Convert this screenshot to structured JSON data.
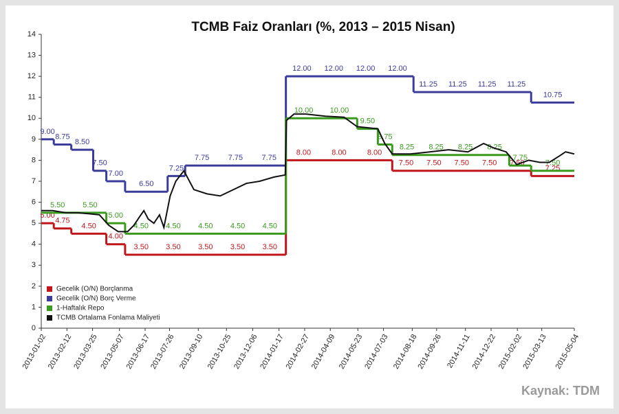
{
  "chart_data": {
    "type": "line",
    "title": "TCMB Faiz Oranları (%, 2013 – 2015 Nisan)",
    "source": "Kaynak: TDM",
    "xlim": [
      "2013-01-02",
      "2015-05-04"
    ],
    "xticks": [
      "2013-01-02",
      "2013-02-12",
      "2013-03-25",
      "2013-05-07",
      "2013-06-17",
      "2013-07-26",
      "2013-09-10",
      "2013-10-25",
      "2013-12-06",
      "2014-01-17",
      "2014-02-27",
      "2014-04-09",
      "2014-05-23",
      "2014-07-03",
      "2014-08-18",
      "2014-09-26",
      "2014-11-11",
      "2014-12-22",
      "2015-02-02",
      "2015-03-13",
      "2015-05-04"
    ],
    "ylim": [
      0,
      14
    ],
    "yticks": [
      0,
      1,
      2,
      3,
      4,
      5,
      6,
      7,
      8,
      9,
      10,
      11,
      12,
      13,
      14
    ],
    "legend": "lower left",
    "series": [
      {
        "name": "Gecelik (O/N) Borçlanma",
        "color": "#c0161b",
        "step": true,
        "x": [
          "2013-01-02",
          "2013-01-22",
          "2013-02-19",
          "2013-04-16",
          "2013-05-16",
          "2014-01-28",
          "2014-07-17",
          "2015-02-24"
        ],
        "values": [
          5,
          4.75,
          4.5,
          4,
          3.5,
          8,
          7.5,
          7.25
        ],
        "value_labels": [
          "5.00",
          "4.75",
          "4.50",
          "4.00",
          "3.50",
          "8.00",
          "7.50",
          "7.25"
        ]
      },
      {
        "name": "Gecelik (O/N) Borç Verme",
        "color": "#3b3b9a",
        "step": true,
        "x": [
          "2013-01-02",
          "2013-01-22",
          "2013-02-19",
          "2013-03-26",
          "2013-04-16",
          "2013-05-16",
          "2013-07-23",
          "2013-08-20",
          "2014-01-28",
          "2014-08-20",
          "2015-02-24"
        ],
        "values": [
          9,
          8.75,
          8.5,
          7.5,
          7,
          6.5,
          7.25,
          7.75,
          12,
          11.25,
          10.75
        ],
        "value_labels": [
          "9.00",
          "8.75",
          "8.50",
          "7.50",
          "7.00",
          "6.50",
          "7.25",
          "7.75",
          "12.00",
          "11.25",
          "10.75"
        ]
      },
      {
        "name": "1-Haftalık Repo",
        "color": "#3a9a1e",
        "step": true,
        "x": [
          "2013-01-02",
          "2013-04-16",
          "2013-05-16",
          "2014-01-28",
          "2014-05-22",
          "2014-06-24",
          "2014-07-17",
          "2015-01-20",
          "2015-02-24"
        ],
        "values": [
          5.5,
          5,
          4.5,
          10,
          9.5,
          8.75,
          8.25,
          7.75,
          7.5
        ],
        "value_labels": [
          "5.50",
          "5.00",
          "4.50",
          "10.00",
          "9.50",
          "8.75",
          "8.25",
          "7.75",
          "7.50"
        ]
      },
      {
        "name": "TCMB Ortalama Fonlama Maliyeti",
        "color": "#111111",
        "x": [
          "2013-01-02",
          "2013-01-20",
          "2013-02-10",
          "2013-03-01",
          "2013-03-20",
          "2013-04-05",
          "2013-04-20",
          "2013-05-05",
          "2013-05-20",
          "2013-05-30",
          "2013-06-08",
          "2013-06-15",
          "2013-06-22",
          "2013-07-01",
          "2013-07-10",
          "2013-07-17",
          "2013-07-27",
          "2013-08-05",
          "2013-08-18",
          "2013-09-03",
          "2013-09-24",
          "2013-10-15",
          "2013-11-05",
          "2013-11-26",
          "2013-12-17",
          "2014-01-09",
          "2014-01-27",
          "2014-01-29",
          "2014-02-10",
          "2014-03-01",
          "2014-04-01",
          "2014-05-01",
          "2014-05-22",
          "2014-06-24",
          "2014-07-05",
          "2014-07-17",
          "2014-08-15",
          "2014-09-15",
          "2014-10-15",
          "2014-11-15",
          "2014-12-10",
          "2014-12-25",
          "2015-01-15",
          "2015-02-01",
          "2015-02-20",
          "2015-03-10",
          "2015-03-25",
          "2015-04-10",
          "2015-04-20",
          "2015-05-04"
        ],
        "values": [
          5.6,
          5.6,
          5.5,
          5.5,
          5.45,
          5.4,
          4.9,
          4.6,
          4.6,
          4.9,
          5.3,
          5.6,
          5.2,
          5.0,
          5.4,
          4.8,
          6.3,
          7.0,
          7.5,
          6.6,
          6.4,
          6.3,
          6.6,
          6.9,
          7.0,
          7.2,
          7.3,
          9.9,
          10.2,
          10.2,
          10.1,
          10.05,
          9.6,
          9.5,
          8.8,
          8.3,
          8.3,
          8.4,
          8.5,
          8.4,
          8.8,
          8.6,
          8.4,
          7.8,
          8.0,
          7.9,
          7.9,
          8.2,
          8.4,
          8.3
        ]
      }
    ]
  }
}
